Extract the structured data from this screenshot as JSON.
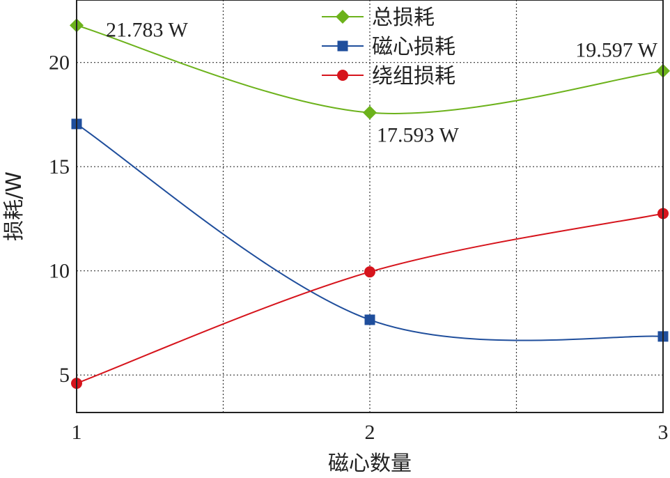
{
  "chart_data": {
    "type": "line",
    "xlabel": "磁心数量",
    "ylabel": "损耗/W",
    "x": [
      1,
      2,
      3
    ],
    "xlim": [
      1,
      3
    ],
    "ylim": [
      3.2,
      23
    ],
    "xticks": [
      1,
      2,
      3
    ],
    "yticks": [
      5,
      10,
      15,
      20
    ],
    "grid": true,
    "legend_position": "top-center",
    "series": [
      {
        "name": "总损耗",
        "values": [
          21.783,
          17.593,
          19.597
        ],
        "color": "#6cb21b",
        "marker": "diamond"
      },
      {
        "name": "磁心损耗",
        "values": [
          17.05,
          7.65,
          6.85
        ],
        "color": "#1f4e9c",
        "marker": "square"
      },
      {
        "name": "绕组损耗",
        "values": [
          4.6,
          9.95,
          12.75
        ],
        "color": "#d6141c",
        "marker": "circle"
      }
    ],
    "annotations": [
      {
        "text": "21.783 W",
        "x": 1,
        "y": 21.783
      },
      {
        "text": "17.593 W",
        "x": 2,
        "y": 17.593
      },
      {
        "text": "19.597 W",
        "x": 3,
        "y": 19.597
      }
    ]
  }
}
